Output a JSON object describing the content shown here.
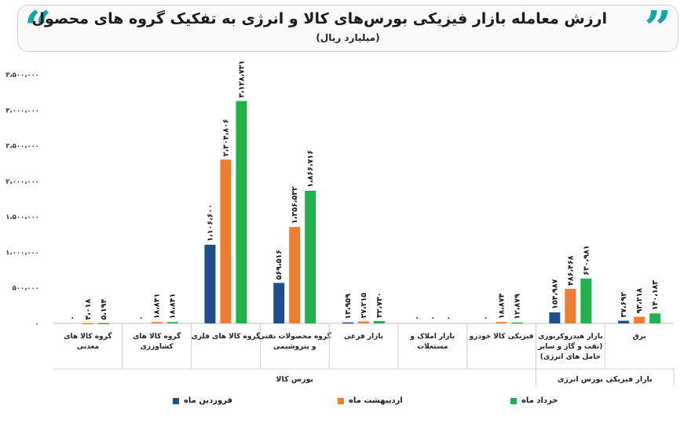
{
  "header": {
    "title": "ارزش معامله بازار فیزیکی بورس‌های کالا و انرژی به تفکیک گروه های محصول",
    "subtitle": "(میلیارد ریال)",
    "quote_left": "“",
    "quote_right": "”"
  },
  "colors": {
    "farvardin": "#1f4e8c",
    "ordibehesht": "#ed7d31",
    "khordad": "#22b04b",
    "title_accent": "#16a5a0"
  },
  "chart_data": {
    "type": "bar",
    "title": "ارزش معامله بازار فیزیکی بورس‌های کالا و انرژی به تفکیک گروه های محصول",
    "subtitle": "(میلیارد ریال)",
    "ylim": [
      0,
      3500000
    ],
    "y_ticks": [
      0,
      500000,
      1000000,
      1500000,
      2000000,
      2500000,
      3000000,
      3500000
    ],
    "y_tick_labels": [
      "۰",
      "۵۰۰،۰۰۰",
      "۱،۰۰۰،۰۰۰",
      "۱،۵۰۰،۰۰۰",
      "۲،۰۰۰،۰۰۰",
      "۲،۵۰۰،۰۰۰",
      "۳،۰۰۰،۰۰۰",
      "۳،۵۰۰،۰۰۰"
    ],
    "grid": false,
    "legend_position": "bottom",
    "categories": [
      "گروه کالا های معدنی",
      "گروه کالا های کشاورزی",
      "گروه کالا های فلزی",
      "گروه محصولات نفتی و پتروشیمی",
      "بازار فرعی",
      "بازار املاک و مستغلات",
      "فیزیکی کالا خودرو",
      "بازار هیدروکربوری (نفت و گاز و سایر حامل های انرژی)",
      "برق"
    ],
    "category_groups": [
      {
        "label": "بورس کالا",
        "span": [
          0,
          6
        ]
      },
      {
        "label": "بازار فیزیکی بورس انرژی",
        "span": [
          7,
          8
        ]
      }
    ],
    "series": [
      {
        "name": "فروردین ماه",
        "values": [
          0,
          0,
          1106600,
          569516,
          13959,
          0,
          0,
          154987,
          37692
        ],
        "labels": [
          "۰",
          "۰",
          "۱،۱۰۶،۶۰۰",
          "۵۶۹،۵۱۶",
          "۱۳،۹۵۹",
          "۰",
          "۰",
          "۱۵۴،۹۸۷",
          "۳۷،۶۹۲"
        ]
      },
      {
        "name": "اردیبهشت ماه",
        "values": [
          4018,
          18841,
          2304806,
          1356532,
          27215,
          0,
          18874,
          486468,
          93218
        ],
        "labels": [
          "۴،۰۱۸",
          "۱۸،۸۴۱",
          "۲،۳۰۴،۸۰۶",
          "۱،۳۵۶،۵۳۲",
          "۲۷،۲۱۵",
          "۰",
          "۱۸،۸۷۴",
          "۴۸۶،۴۶۸",
          "۹۳،۲۱۸"
        ]
      },
      {
        "name": "خرداد ماه",
        "values": [
          5194,
          18841,
          3128731,
          1866716,
          32730,
          0,
          12879,
          630981,
          140183
        ],
        "labels": [
          "۵،۱۹۴",
          "۱۸،۸۴۱",
          "۳،۱۲۸،۷۳۱",
          "۱،۸۶۶،۷۱۶",
          "۳۲،۷۳۰",
          "۰",
          "۱۲،۸۷۹",
          "۶۳۰،۹۸۱",
          "۱۴۰،۱۸۳"
        ]
      }
    ]
  },
  "legend": {
    "farvardin": "فروردین ماه",
    "ordibehesht": "اردیبهشت ماه",
    "khordad": "خرداد ماه"
  }
}
